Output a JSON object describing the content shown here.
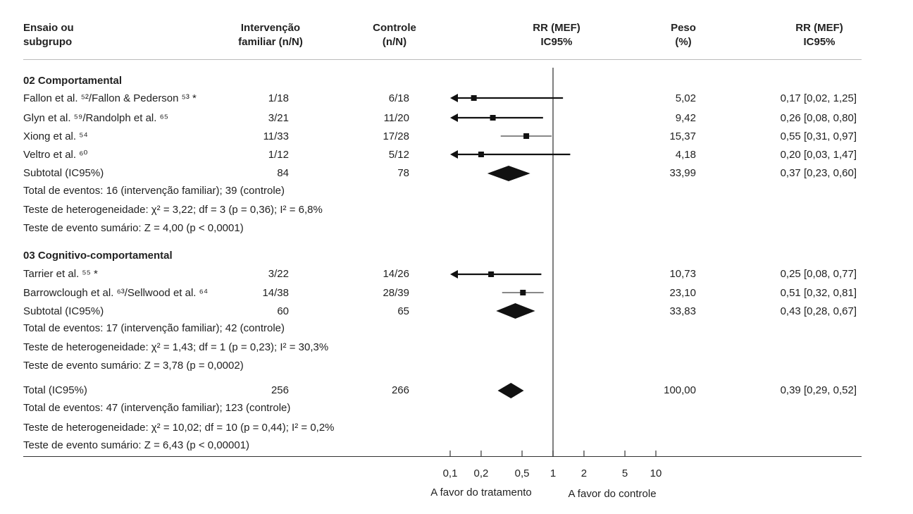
{
  "headers": {
    "study": [
      "Ensaio ou",
      "subgrupo"
    ],
    "intervention": [
      "Intervenção",
      "familiar (n/N)"
    ],
    "control": [
      "Controle",
      "(n/N)"
    ],
    "rr_plot": [
      "RR (MEF)",
      "IC95%"
    ],
    "weight": [
      "Peso",
      "(%)"
    ],
    "rr_text": [
      "RR (MEF)",
      "IC95%"
    ]
  },
  "groups": [
    {
      "title": "02 Comportamental",
      "studies": [
        {
          "label": "Fallon et al. ⁵²/Fallon & Pederson ⁵³ *",
          "intervention": "1/18",
          "control": "6/18",
          "weight": "5,02",
          "rr_text": "0,17 [0,02, 1,25]"
        },
        {
          "label": "Glyn et al. ⁵⁹/Randolph et al. ⁶⁵",
          "intervention": "3/21",
          "control": "11/20",
          "weight": "9,42",
          "rr_text": "0,26 [0,08, 0,80]"
        },
        {
          "label": "Xiong et al. ⁵⁴",
          "intervention": "11/33",
          "control": "17/28",
          "weight": "15,37",
          "rr_text": "0,55 [0,31, 0,97]"
        },
        {
          "label": "Veltro et al. ⁶⁰",
          "intervention": "1/12",
          "control": "5/12",
          "weight": "4,18",
          "rr_text": "0,20 [0,03, 1,47]"
        }
      ],
      "subtotal": {
        "label": "Subtotal (IC95%)",
        "intervention": "84",
        "control": "78",
        "weight": "33,99",
        "rr_text": "0,37 [0,23, 0,60]"
      },
      "notes": [
        "Total de eventos: 16 (intervenção familiar); 39 (controle)",
        "Teste de heterogeneidade: χ² = 3,22; df = 3 (p = 0,36); I² = 6,8%",
        "Teste de evento sumário: Z = 4,00 (p < 0,0001)"
      ]
    },
    {
      "title": "03 Cognitivo-comportamental",
      "studies": [
        {
          "label": "Tarrier et al. ⁵⁵ *",
          "intervention": "3/22",
          "control": "14/26",
          "weight": "10,73",
          "rr_text": "0,25 [0,08, 0,77]"
        },
        {
          "label": "Barrowclough et al. ⁶³/Sellwood et al. ⁶⁴",
          "intervention": "14/38",
          "control": "28/39",
          "weight": "23,10",
          "rr_text": "0,51 [0,32, 0,81]"
        }
      ],
      "subtotal": {
        "label": "Subtotal (IC95%)",
        "intervention": "60",
        "control": "65",
        "weight": "33,83",
        "rr_text": "0,43 [0,28, 0,67]"
      },
      "notes": [
        "Total de eventos: 17 (intervenção familiar); 42 (controle)",
        "Teste de heterogeneidade: χ² = 1,43; df = 1 (p = 0,23); I² = 30,3%",
        "Teste de evento sumário: Z = 3,78 (p = 0,0002)"
      ]
    }
  ],
  "total": {
    "label": "Total (IC95%)",
    "intervention": "256",
    "control": "266",
    "weight": "100,00",
    "rr_text": "0,39 [0,29, 0,52]",
    "notes": [
      "Total de eventos: 47 (intervenção familiar); 123 (controle)",
      "Teste de heterogeneidade: χ² = 10,02; df = 10 (p = 0,44); I² = 0,2%",
      "Teste de evento sumário: Z = 6,43 (p < 0,00001)"
    ]
  },
  "axis": {
    "ticks": [
      0.1,
      0.2,
      0.5,
      1,
      2,
      5,
      10
    ],
    "tick_labels": [
      "0,1",
      "0,2",
      "0,5",
      "1",
      "2",
      "5",
      "10"
    ],
    "label_left": "A favor do tratamento",
    "label_right": "A favor do controle"
  },
  "chart_data": {
    "type": "forest",
    "scale": "log",
    "xlim": [
      0.1,
      10
    ],
    "reference_line": 1,
    "axis_clip_low": 0.1,
    "rows": [
      {
        "name": "Fallon et al.",
        "rr": 0.17,
        "lo": 0.02,
        "hi": 1.25,
        "weight": 5.02,
        "kind": "study"
      },
      {
        "name": "Glyn et al.",
        "rr": 0.26,
        "lo": 0.08,
        "hi": 0.8,
        "weight": 9.42,
        "kind": "study"
      },
      {
        "name": "Xiong et al.",
        "rr": 0.55,
        "lo": 0.31,
        "hi": 0.97,
        "weight": 15.37,
        "kind": "study"
      },
      {
        "name": "Veltro et al.",
        "rr": 0.2,
        "lo": 0.03,
        "hi": 1.47,
        "weight": 4.18,
        "kind": "study"
      },
      {
        "name": "Subtotal 02",
        "rr": 0.37,
        "lo": 0.23,
        "hi": 0.6,
        "weight": 33.99,
        "kind": "summary"
      },
      {
        "name": "Tarrier et al.",
        "rr": 0.25,
        "lo": 0.08,
        "hi": 0.77,
        "weight": 10.73,
        "kind": "study"
      },
      {
        "name": "Barrowclough et al.",
        "rr": 0.51,
        "lo": 0.32,
        "hi": 0.81,
        "weight": 23.1,
        "kind": "study"
      },
      {
        "name": "Subtotal 03",
        "rr": 0.43,
        "lo": 0.28,
        "hi": 0.67,
        "weight": 33.83,
        "kind": "summary"
      },
      {
        "name": "Total",
        "rr": 0.39,
        "lo": 0.29,
        "hi": 0.52,
        "weight": 100.0,
        "kind": "summary"
      }
    ]
  }
}
